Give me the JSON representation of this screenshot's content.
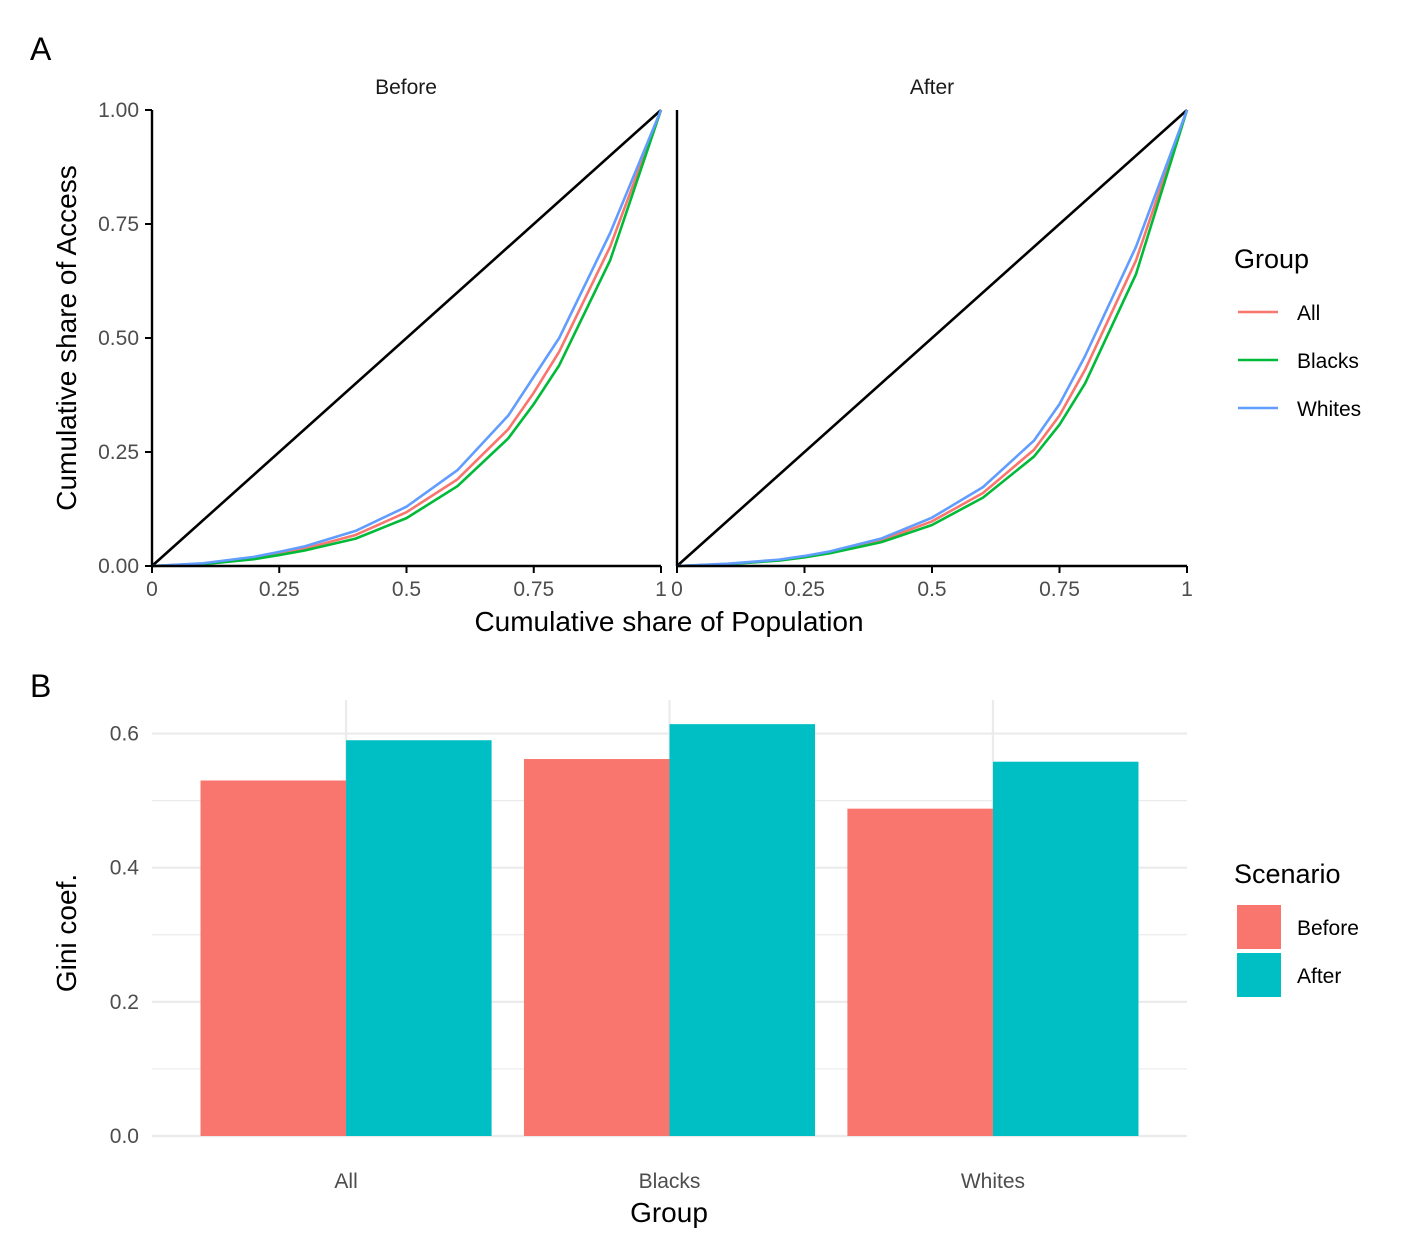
{
  "panel_labels": [
    "A",
    "B"
  ],
  "chart_data": [
    {
      "type": "line",
      "facets": [
        "Before",
        "After"
      ],
      "xlabel": "Cumulative share of Population",
      "ylabel": "Cumulative share of Access",
      "xlim": [
        0,
        1
      ],
      "ylim": [
        0,
        1
      ],
      "x_ticks": [
        "0",
        "0.25",
        "0.5",
        "0.75",
        "1"
      ],
      "y_ticks": [
        "0.00",
        "0.25",
        "0.50",
        "0.75",
        "1.00"
      ],
      "grid": false,
      "legend": {
        "title": "Group",
        "position": "right"
      },
      "equality_line": {
        "x": [
          0,
          1
        ],
        "y": [
          0,
          1
        ],
        "color": "#000000"
      },
      "x": [
        0,
        0.1,
        0.2,
        0.25,
        0.3,
        0.4,
        0.5,
        0.6,
        0.7,
        0.75,
        0.8,
        0.9,
        1
      ],
      "series": [
        {
          "name": "All",
          "facet": "Before",
          "color": "#F8766D",
          "y": [
            0,
            0.005,
            0.017,
            0.027,
            0.038,
            0.068,
            0.118,
            0.19,
            0.3,
            0.38,
            0.47,
            0.7,
            1
          ]
        },
        {
          "name": "Blacks",
          "facet": "Before",
          "color": "#00BA38",
          "y": [
            0,
            0.004,
            0.015,
            0.024,
            0.034,
            0.06,
            0.105,
            0.175,
            0.28,
            0.355,
            0.44,
            0.67,
            1
          ]
        },
        {
          "name": "Whites",
          "facet": "Before",
          "color": "#619CFF",
          "y": [
            0,
            0.006,
            0.02,
            0.031,
            0.043,
            0.077,
            0.13,
            0.21,
            0.33,
            0.415,
            0.5,
            0.73,
            1
          ]
        },
        {
          "name": "All",
          "facet": "After",
          "color": "#F8766D",
          "y": [
            0,
            0.004,
            0.013,
            0.02,
            0.03,
            0.056,
            0.098,
            0.16,
            0.255,
            0.33,
            0.43,
            0.67,
            1
          ]
        },
        {
          "name": "Blacks",
          "facet": "After",
          "color": "#00BA38",
          "y": [
            0,
            0.004,
            0.012,
            0.019,
            0.028,
            0.052,
            0.09,
            0.15,
            0.24,
            0.31,
            0.4,
            0.64,
            1
          ]
        },
        {
          "name": "Whites",
          "facet": "After",
          "color": "#619CFF",
          "y": [
            0,
            0.005,
            0.014,
            0.022,
            0.032,
            0.06,
            0.106,
            0.173,
            0.275,
            0.355,
            0.46,
            0.7,
            1
          ]
        }
      ]
    },
    {
      "type": "bar",
      "categories": [
        "All",
        "Blacks",
        "Whites"
      ],
      "series": [
        {
          "name": "Before",
          "color": "#F8766D",
          "values": [
            0.53,
            0.562,
            0.488
          ]
        },
        {
          "name": "After",
          "color": "#00BFC4",
          "values": [
            0.59,
            0.614,
            0.558
          ]
        }
      ],
      "xlabel": "Group",
      "ylabel": "Gini coef.",
      "ylim": [
        0,
        0.65
      ],
      "y_ticks": [
        "0.0",
        "0.2",
        "0.4",
        "0.6"
      ],
      "grid": true,
      "legend": {
        "title": "Scenario",
        "position": "right"
      }
    }
  ]
}
